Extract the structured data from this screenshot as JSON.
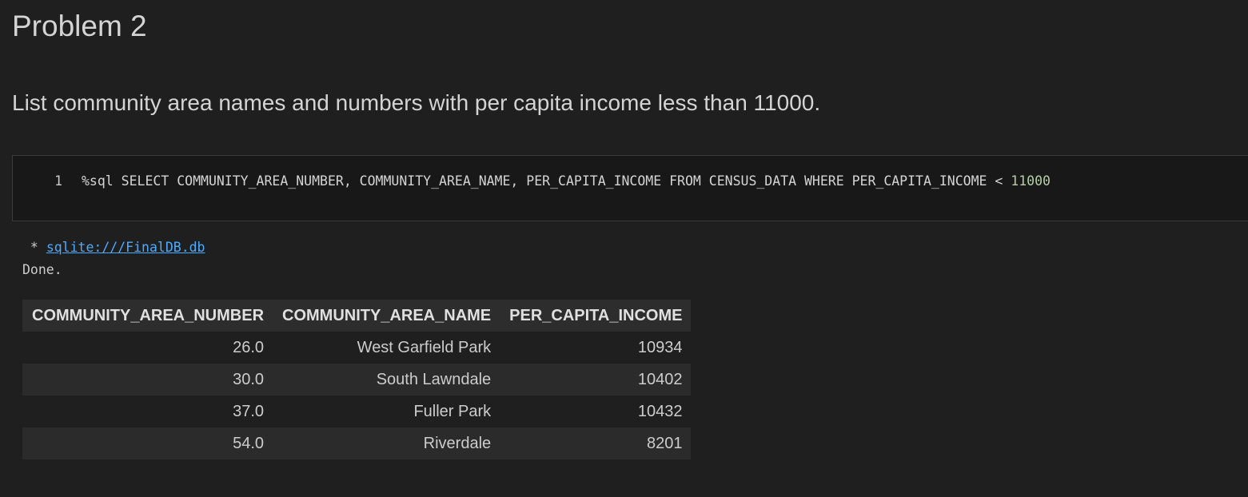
{
  "heading": "Problem 2",
  "description": "List community area names and numbers with per capita income less than 11000.",
  "code_cell": {
    "line_number": "1",
    "code": "%sql SELECT COMMUNITY_AREA_NUMBER, COMMUNITY_AREA_NAME, PER_CAPITA_INCOME FROM CENSUS_DATA WHERE PER_CAPITA_INCOME < ",
    "literal": "11000"
  },
  "output": {
    "connection_prefix": " * ",
    "connection_link": "sqlite:///FinalDB.db",
    "status": "Done."
  },
  "table": {
    "columns": [
      "COMMUNITY_AREA_NUMBER",
      "COMMUNITY_AREA_NAME",
      "PER_CAPITA_INCOME"
    ],
    "rows": [
      [
        "26.0",
        "West Garfield Park",
        "10934"
      ],
      [
        "30.0",
        "South Lawndale",
        "10402"
      ],
      [
        "37.0",
        "Fuller Park",
        "10432"
      ],
      [
        "54.0",
        "Riverdale",
        "8201"
      ]
    ]
  },
  "colors": {
    "background": "#1f1f1f",
    "code_background": "#181818",
    "link": "#4daafc",
    "numeric_literal": "#b5cea8"
  }
}
